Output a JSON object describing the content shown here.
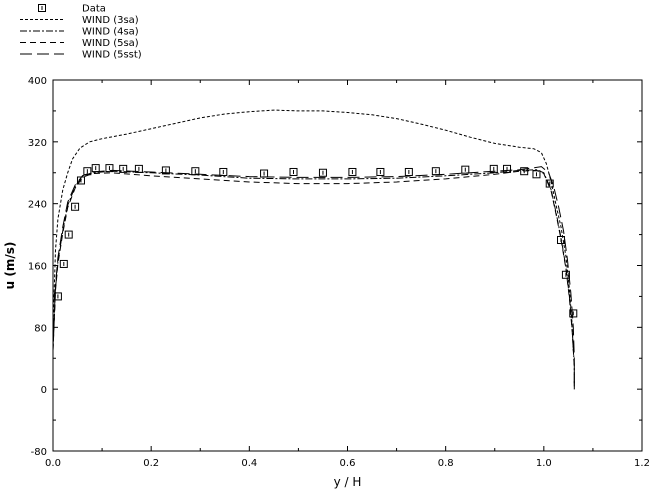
{
  "chart_data": {
    "type": "line",
    "xlabel": "y / H",
    "ylabel": "u (m/s)",
    "xlim": [
      0.0,
      1.2
    ],
    "ylim": [
      -80,
      400
    ],
    "xticks": [
      "0.0",
      "0.2",
      "0.4",
      "0.6",
      "0.8",
      "1.0",
      "1.2"
    ],
    "yticks": [
      "-80",
      "0",
      "80",
      "160",
      "240",
      "320",
      "400"
    ],
    "grid": false,
    "legend_position": "top-left",
    "series": [
      {
        "name": "Data",
        "style": "markers",
        "marker": "square",
        "points": [
          [
            0.01,
            120
          ],
          [
            0.022,
            162
          ],
          [
            0.032,
            200
          ],
          [
            0.045,
            236
          ],
          [
            0.057,
            270
          ],
          [
            0.07,
            282
          ],
          [
            0.087,
            286
          ],
          [
            0.115,
            286
          ],
          [
            0.143,
            285
          ],
          [
            0.175,
            285
          ],
          [
            0.23,
            283
          ],
          [
            0.29,
            282
          ],
          [
            0.347,
            281
          ],
          [
            0.43,
            279
          ],
          [
            0.49,
            281
          ],
          [
            0.55,
            280
          ],
          [
            0.61,
            281
          ],
          [
            0.667,
            281
          ],
          [
            0.725,
            281
          ],
          [
            0.78,
            282
          ],
          [
            0.84,
            284
          ],
          [
            0.898,
            285
          ],
          [
            0.925,
            285
          ],
          [
            0.96,
            282
          ],
          [
            0.985,
            278
          ],
          [
            1.012,
            266
          ],
          [
            1.035,
            193
          ],
          [
            1.045,
            148
          ],
          [
            1.06,
            98
          ]
        ]
      },
      {
        "name": "WIND (3sa)",
        "style": "short-dash",
        "points": [
          [
            0.0,
            80
          ],
          [
            0.005,
            180
          ],
          [
            0.01,
            220
          ],
          [
            0.02,
            258
          ],
          [
            0.03,
            280
          ],
          [
            0.04,
            298
          ],
          [
            0.055,
            312
          ],
          [
            0.075,
            320
          ],
          [
            0.1,
            324
          ],
          [
            0.15,
            330
          ],
          [
            0.2,
            337
          ],
          [
            0.25,
            344
          ],
          [
            0.3,
            351
          ],
          [
            0.35,
            356
          ],
          [
            0.4,
            359
          ],
          [
            0.45,
            361
          ],
          [
            0.5,
            360
          ],
          [
            0.55,
            360
          ],
          [
            0.6,
            358
          ],
          [
            0.65,
            355
          ],
          [
            0.7,
            350
          ],
          [
            0.75,
            343
          ],
          [
            0.8,
            335
          ],
          [
            0.85,
            326
          ],
          [
            0.9,
            318
          ],
          [
            0.95,
            313
          ],
          [
            0.98,
            311
          ],
          [
            0.995,
            306
          ],
          [
            1.005,
            292
          ],
          [
            1.015,
            268
          ],
          [
            1.025,
            238
          ],
          [
            1.035,
            210
          ],
          [
            1.045,
            172
          ],
          [
            1.052,
            130
          ],
          [
            1.057,
            90
          ],
          [
            1.06,
            50
          ]
        ]
      },
      {
        "name": "WIND (4sa)",
        "style": "dash-dot",
        "points": [
          [
            0.0,
            50
          ],
          [
            0.005,
            130
          ],
          [
            0.01,
            165
          ],
          [
            0.02,
            205
          ],
          [
            0.03,
            238
          ],
          [
            0.045,
            262
          ],
          [
            0.06,
            276
          ],
          [
            0.08,
            280
          ],
          [
            0.12,
            282
          ],
          [
            0.2,
            280
          ],
          [
            0.3,
            277
          ],
          [
            0.4,
            273
          ],
          [
            0.5,
            272
          ],
          [
            0.6,
            272
          ],
          [
            0.7,
            273
          ],
          [
            0.8,
            276
          ],
          [
            0.9,
            280
          ],
          [
            0.95,
            283
          ],
          [
            0.985,
            284
          ],
          [
            1.0,
            280
          ],
          [
            1.015,
            258
          ],
          [
            1.025,
            228
          ],
          [
            1.035,
            196
          ],
          [
            1.045,
            158
          ],
          [
            1.052,
            120
          ],
          [
            1.058,
            75
          ],
          [
            1.062,
            30
          ],
          [
            1.062,
            0
          ]
        ]
      },
      {
        "name": "WIND (5sa)",
        "style": "dash",
        "points": [
          [
            0.0,
            50
          ],
          [
            0.005,
            128
          ],
          [
            0.01,
            162
          ],
          [
            0.02,
            202
          ],
          [
            0.03,
            235
          ],
          [
            0.045,
            260
          ],
          [
            0.06,
            274
          ],
          [
            0.08,
            279
          ],
          [
            0.12,
            280
          ],
          [
            0.2,
            276
          ],
          [
            0.3,
            272
          ],
          [
            0.4,
            268
          ],
          [
            0.5,
            266
          ],
          [
            0.6,
            266
          ],
          [
            0.7,
            268
          ],
          [
            0.8,
            272
          ],
          [
            0.9,
            278
          ],
          [
            0.95,
            282
          ],
          [
            0.985,
            283
          ],
          [
            1.0,
            279
          ],
          [
            1.015,
            256
          ],
          [
            1.025,
            226
          ],
          [
            1.035,
            194
          ],
          [
            1.045,
            156
          ],
          [
            1.052,
            118
          ],
          [
            1.058,
            73
          ],
          [
            1.062,
            28
          ],
          [
            1.062,
            0
          ]
        ]
      },
      {
        "name": "WIND (5sst)",
        "style": "long-dash",
        "points": [
          [
            0.0,
            55
          ],
          [
            0.005,
            135
          ],
          [
            0.01,
            170
          ],
          [
            0.02,
            210
          ],
          [
            0.03,
            242
          ],
          [
            0.045,
            264
          ],
          [
            0.06,
            276
          ],
          [
            0.08,
            281
          ],
          [
            0.12,
            283
          ],
          [
            0.2,
            281
          ],
          [
            0.3,
            278
          ],
          [
            0.4,
            275
          ],
          [
            0.5,
            274
          ],
          [
            0.6,
            274
          ],
          [
            0.7,
            275
          ],
          [
            0.8,
            278
          ],
          [
            0.9,
            282
          ],
          [
            0.95,
            284
          ],
          [
            0.975,
            286
          ],
          [
            0.995,
            288
          ],
          [
            1.01,
            280
          ],
          [
            1.02,
            262
          ],
          [
            1.03,
            236
          ],
          [
            1.04,
            205
          ],
          [
            1.048,
            168
          ],
          [
            1.055,
            125
          ],
          [
            1.06,
            80
          ],
          [
            1.062,
            40
          ],
          [
            1.062,
            0
          ]
        ]
      }
    ]
  }
}
